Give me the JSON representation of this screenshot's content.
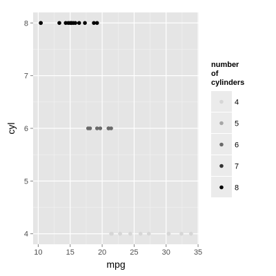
{
  "chart_data": {
    "type": "scatter",
    "title": "",
    "xlabel": "mpg",
    "ylabel": "cyl",
    "xlim": [
      9.2,
      35.1
    ],
    "ylim": [
      3.8,
      8.2
    ],
    "x_ticks": [
      10,
      15,
      20,
      25,
      30,
      35
    ],
    "y_ticks": [
      4,
      5,
      6,
      7,
      8
    ],
    "x_tick_labels": [
      "10",
      "15",
      "20",
      "25",
      "30",
      "35"
    ],
    "y_tick_labels": [
      "4",
      "5",
      "6",
      "7",
      "8"
    ],
    "grid": true,
    "legend": {
      "title_lines": [
        "number",
        "of",
        "cylinders"
      ],
      "placement": "right",
      "entries": [
        {
          "label": "4",
          "value": 4
        },
        {
          "label": "5",
          "value": 5
        },
        {
          "label": "6",
          "value": 6
        },
        {
          "label": "7",
          "value": 7
        },
        {
          "label": "8",
          "value": 8
        }
      ]
    },
    "colors": {
      "panel_bg": "#e5e5e5",
      "grid_major": "#ffffff",
      "grid_minor": "#f2f2f2",
      "tick_text": "#4d4d4d",
      "legend_key_bg": "#ebebeb",
      "point_4": "#d6d6d6",
      "point_5": "#a6a6a6",
      "point_6": "#6a6a6a",
      "point_7": "#333333",
      "point_8": "#000000"
    },
    "points": [
      {
        "x": 21.0,
        "y": 6
      },
      {
        "x": 21.0,
        "y": 6
      },
      {
        "x": 22.8,
        "y": 4
      },
      {
        "x": 21.4,
        "y": 6
      },
      {
        "x": 18.7,
        "y": 8
      },
      {
        "x": 18.1,
        "y": 6
      },
      {
        "x": 14.3,
        "y": 8
      },
      {
        "x": 24.4,
        "y": 4
      },
      {
        "x": 22.8,
        "y": 4
      },
      {
        "x": 19.2,
        "y": 6
      },
      {
        "x": 17.8,
        "y": 6
      },
      {
        "x": 16.4,
        "y": 8
      },
      {
        "x": 17.3,
        "y": 8
      },
      {
        "x": 15.2,
        "y": 8
      },
      {
        "x": 10.4,
        "y": 8
      },
      {
        "x": 10.4,
        "y": 8
      },
      {
        "x": 14.7,
        "y": 8
      },
      {
        "x": 32.4,
        "y": 4
      },
      {
        "x": 30.4,
        "y": 4
      },
      {
        "x": 33.9,
        "y": 4
      },
      {
        "x": 21.5,
        "y": 4
      },
      {
        "x": 15.5,
        "y": 8
      },
      {
        "x": 15.2,
        "y": 8
      },
      {
        "x": 13.3,
        "y": 8
      },
      {
        "x": 19.2,
        "y": 8
      },
      {
        "x": 27.3,
        "y": 4
      },
      {
        "x": 26.0,
        "y": 4
      },
      {
        "x": 30.4,
        "y": 4
      },
      {
        "x": 15.8,
        "y": 8
      },
      {
        "x": 19.7,
        "y": 6
      },
      {
        "x": 15.0,
        "y": 8
      },
      {
        "x": 21.4,
        "y": 4
      }
    ]
  }
}
